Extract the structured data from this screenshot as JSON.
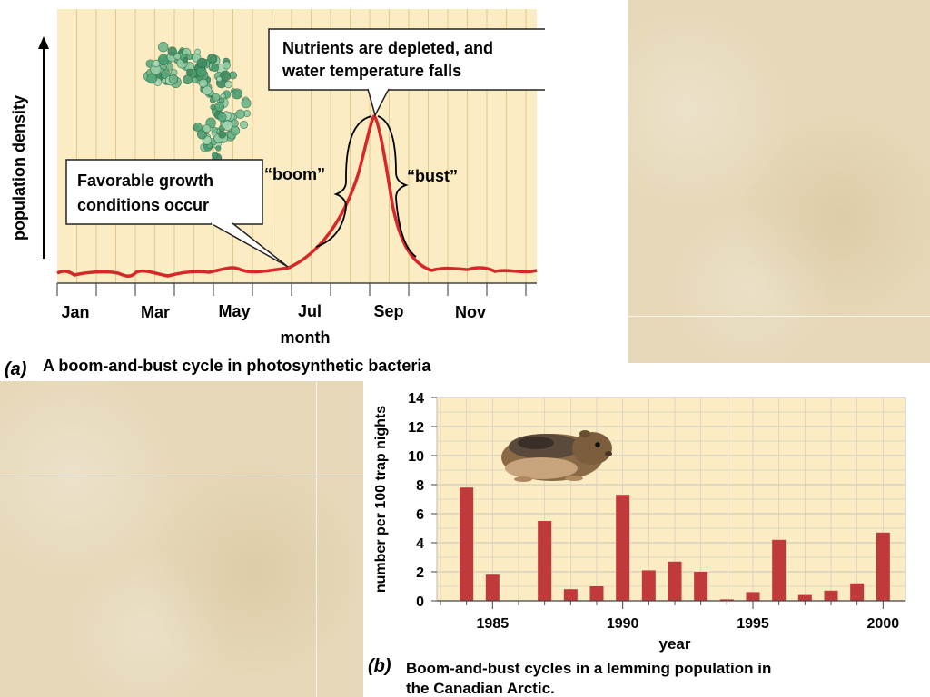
{
  "chart_data": [
    {
      "type": "line",
      "panel_letter": "(a)",
      "caption": "A boom-and-bust cycle in photosynthetic bacteria",
      "xlabel": "month",
      "ylabel": "population density",
      "categories": [
        "Jan",
        "Mar",
        "May",
        "Jul",
        "Sep",
        "Nov"
      ],
      "annotations": [
        {
          "lines": [
            "Nutrients are depleted, and",
            "water temperature falls"
          ]
        },
        {
          "lines": [
            "Favorable growth",
            "conditions occur"
          ]
        }
      ],
      "phase_labels": [
        "“boom”",
        "“bust”"
      ],
      "line_color": "#d62828",
      "background": "#fbecc4"
    },
    {
      "type": "bar",
      "panel_letter": "(b)",
      "caption_lines": [
        "Boom-and-bust cycles in a lemming population in",
        "the Canadian Arctic."
      ],
      "xlabel": "year",
      "ylabel": "number per 100 trap nights",
      "ylim": [
        0,
        14
      ],
      "yticks": [
        0,
        2,
        4,
        6,
        8,
        10,
        12,
        14
      ],
      "xticks": [
        1985,
        1990,
        1995,
        2000
      ],
      "xlim": [
        1983,
        2001
      ],
      "x": [
        1984,
        1985,
        1987,
        1988,
        1989,
        1990,
        1991,
        1992,
        1993,
        1994,
        1995,
        1996,
        1997,
        1998,
        1999,
        2000
      ],
      "values": [
        7.8,
        1.8,
        5.5,
        0.8,
        1.0,
        7.3,
        2.1,
        2.7,
        2.0,
        0.1,
        0.6,
        4.2,
        0.4,
        0.7,
        1.2,
        4.7
      ],
      "bar_color": "#c0393b",
      "grid": true,
      "background": "#fbecc4"
    }
  ]
}
